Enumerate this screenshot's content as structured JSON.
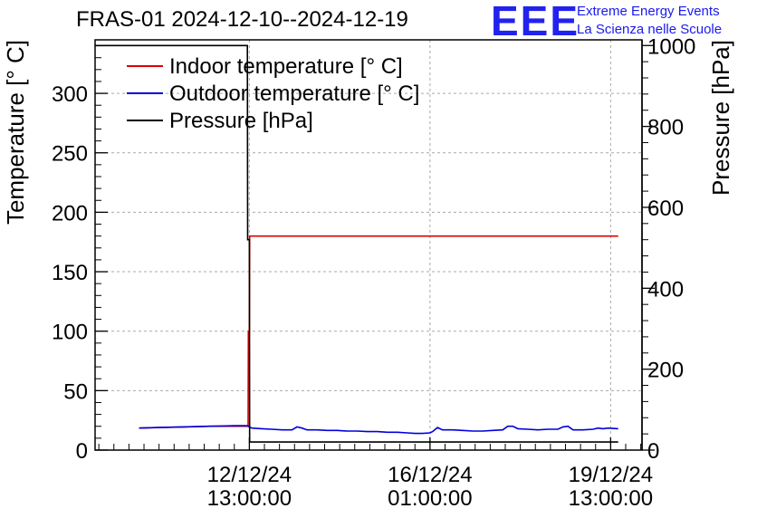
{
  "header": {
    "title": "FRAS-01 2024-12-10--2024-12-19",
    "logo_text": "EEE",
    "logo_line1": "Extreme Energy Events",
    "logo_line2": "La Scienza nelle Scuole"
  },
  "colors": {
    "indoor": "#dd0000",
    "outdoor": "#0000dd",
    "pressure": "#000000",
    "grid": "#aaaaaa",
    "logo": "#2222ee"
  },
  "chart_data": {
    "type": "line",
    "title": "FRAS-01 2024-12-10--2024-12-19",
    "ylabel": "Temperature [° C]",
    "y2label": "Pressure [hPa]",
    "ylim": [
      0,
      345
    ],
    "y2lim": [
      0,
      1014
    ],
    "xlim_hours": [
      -0.5,
      217.5
    ],
    "yticks": [
      0,
      50,
      100,
      150,
      200,
      250,
      300
    ],
    "y2ticks": [
      0,
      200,
      400,
      600,
      800,
      1000
    ],
    "xticks": [
      {
        "hour": 61,
        "line1": "12/12/24",
        "line2": "13:00:00"
      },
      {
        "hour": 133,
        "line1": "16/12/24",
        "line2": "01:00:00"
      },
      {
        "hour": 205,
        "line1": "19/12/24",
        "line2": "13:00:00"
      }
    ],
    "grid": true,
    "legend_position": "top-left",
    "series": [
      {
        "name": "Indoor temperature [° C]",
        "axis": "left",
        "x": [
          17,
          25,
          35,
          45,
          55,
          60.5,
          60.6,
          61,
          61.1,
          61.5,
          100,
          150,
          208
        ],
        "y": [
          18.5,
          19,
          19.5,
          20,
          20,
          20,
          100,
          100,
          180,
          180,
          180,
          180,
          180
        ]
      },
      {
        "name": "Outdoor temperature [° C]",
        "axis": "left",
        "x": [
          17,
          25,
          35,
          45,
          55,
          60,
          62,
          66,
          70,
          74,
          78,
          80,
          82,
          84,
          88,
          92,
          96,
          100,
          104,
          108,
          112,
          116,
          120,
          124,
          127,
          130,
          133,
          134,
          136,
          138,
          142,
          146,
          150,
          154,
          158,
          162,
          164,
          166,
          168,
          172,
          176,
          180,
          184,
          186,
          188,
          190,
          194,
          198,
          200,
          202,
          204,
          208
        ],
        "y": [
          18.5,
          19,
          19.5,
          20,
          20.5,
          20.5,
          18.5,
          18,
          17.5,
          17,
          17,
          19.5,
          18.5,
          17,
          17,
          16.5,
          16.5,
          16,
          16,
          15.5,
          15.5,
          15,
          15,
          14.5,
          14,
          14,
          14.5,
          15.5,
          19,
          17,
          17,
          16.5,
          16,
          16,
          16.5,
          17,
          20,
          20,
          18,
          17.5,
          17,
          17.5,
          17.5,
          19.5,
          20,
          17,
          17,
          17.5,
          18.5,
          18,
          18.5,
          18
        ]
      },
      {
        "name": "Pressure [hPa]",
        "axis": "right",
        "x": [
          -0.5,
          60.2,
          60.3,
          61,
          61.1,
          208
        ],
        "y": [
          1000,
          1000,
          520,
          520,
          20,
          20
        ]
      }
    ]
  }
}
